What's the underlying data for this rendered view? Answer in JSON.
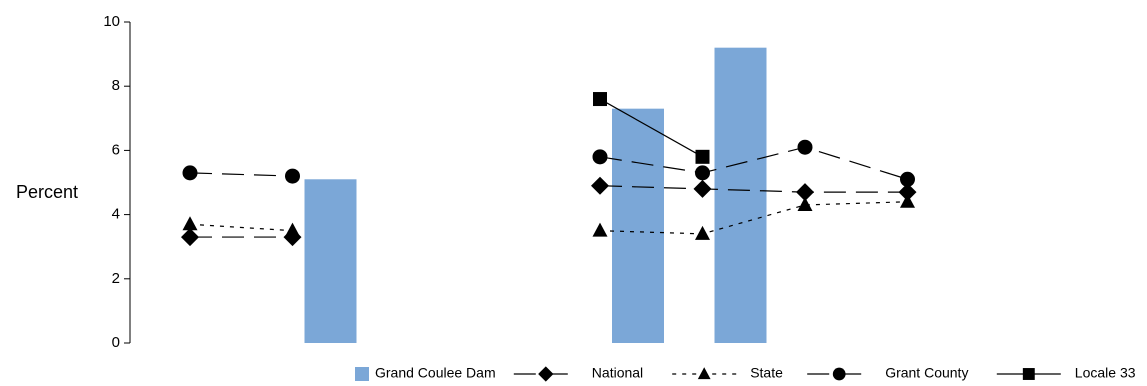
{
  "chart_data": {
    "type": "bar",
    "ylabel": "Percent",
    "ylim": [
      0,
      10
    ],
    "yticks": [
      "0",
      "2",
      "4",
      "6",
      "8",
      "10"
    ],
    "categories": [
      "",
      "",
      "",
      "",
      "",
      "",
      "",
      ""
    ],
    "grid": false,
    "legend_position": "bottom",
    "bars": {
      "name": "Grand Coulee Dam",
      "color": "#7ba7d7",
      "values": [
        null,
        5.1,
        null,
        null,
        7.3,
        9.2,
        null,
        null
      ]
    },
    "series": [
      {
        "name": "National",
        "marker": "diamond",
        "line": "long-dash",
        "values": [
          3.3,
          3.3,
          null,
          null,
          4.9,
          4.8,
          4.7,
          4.7
        ]
      },
      {
        "name": "State",
        "marker": "triangle",
        "line": "short-dash",
        "values": [
          3.7,
          3.5,
          null,
          null,
          3.5,
          3.4,
          4.3,
          4.4
        ]
      },
      {
        "name": "Grant County",
        "marker": "circle",
        "line": "long-dash",
        "values": [
          5.3,
          5.2,
          null,
          null,
          5.8,
          5.3,
          6.1,
          5.1
        ]
      },
      {
        "name": "Locale 33",
        "marker": "square",
        "line": "solid",
        "values": [
          null,
          null,
          null,
          null,
          7.6,
          5.8,
          null,
          null
        ]
      }
    ]
  }
}
